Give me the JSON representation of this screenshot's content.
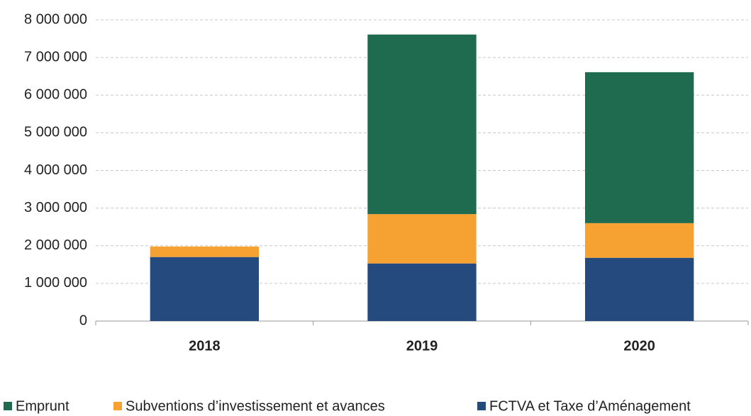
{
  "chart_data": {
    "type": "stacked_bar",
    "categories": [
      "2018",
      "2019",
      "2020"
    ],
    "series": [
      {
        "name": "Emprunt",
        "color": "#1e6b4f",
        "values": [
          0,
          4770000,
          4010000
        ]
      },
      {
        "name": "Subventions d’investissement et avances",
        "color": "#f5a233",
        "values": [
          280000,
          1310000,
          920000
        ]
      },
      {
        "name": "FCTVA et Taxe d’Aménagement",
        "color": "#244a7e",
        "values": [
          1700000,
          1530000,
          1680000
        ]
      }
    ],
    "ylim": [
      0,
      8000000
    ],
    "yticks": [
      0,
      {
        "value": 1000000,
        "label": "1 000 000"
      },
      {
        "value": 2000000,
        "label": "2 000 000"
      },
      {
        "value": 3000000,
        "label": "3 000 000"
      },
      {
        "value": 4000000,
        "label": "4 000 000"
      },
      {
        "value": 5000000,
        "label": "5 000 000"
      },
      {
        "value": 6000000,
        "label": "6 000 000"
      },
      {
        "value": 7000000,
        "label": "7 000 000"
      },
      {
        "value": 8000000,
        "label": "8 000 000"
      }
    ],
    "grid": true,
    "legend": "bottom"
  }
}
